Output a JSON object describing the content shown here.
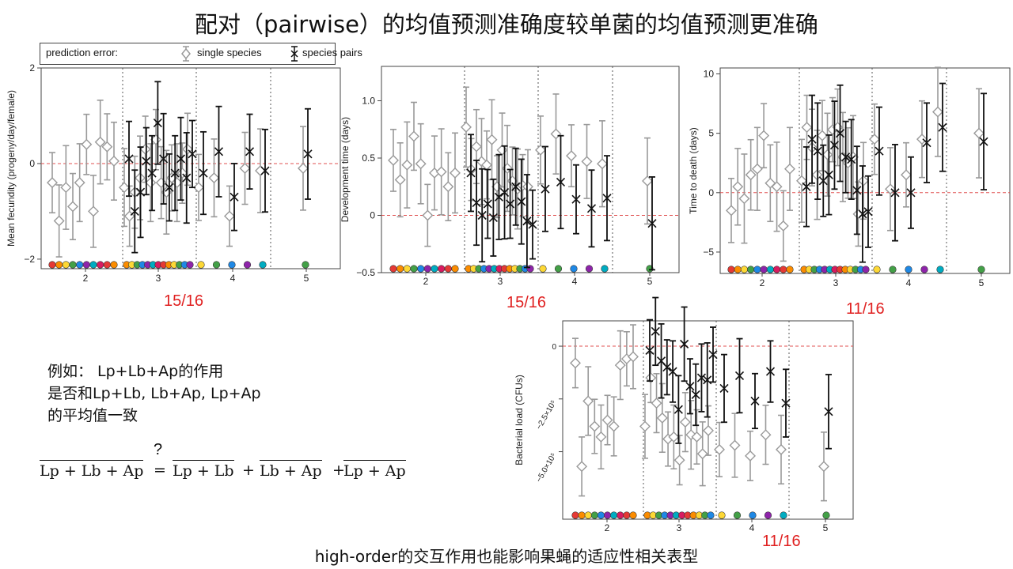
{
  "page": {
    "title": "配对（pairwise）的均值预测准确度较单菌的均值预测更准确",
    "footer": "high-order的交互作用也能影响果蝇的适应性相关表型",
    "note_lines": [
      "例如： Lp+Lb+Ap的作用",
      "是否和Lp+Lb, Lb+Ap, Lp+Ap",
      "的平均值一致"
    ],
    "formula": {
      "lhs": "Lp + Lb + Ap",
      "question": "?",
      "equals": "=",
      "terms": [
        "Lp + Lb",
        "Lb + Ap",
        "Lp + Ap"
      ],
      "plus": "+"
    },
    "legend": {
      "title": "prediction error:",
      "single": "single species",
      "pairs": "species pairs"
    },
    "fractions": [
      "15/16",
      "15/16",
      "11/16",
      "11/16"
    ],
    "colors": {
      "single": "#999999",
      "pairs": "#111111",
      "zero_line": "#e05050",
      "fraction": "#e02020"
    }
  },
  "chart_data": [
    {
      "type": "scatter",
      "ylabel": "Mean fecundity (progeny/day/female)",
      "categories": [
        "2",
        "3",
        "4",
        "5"
      ],
      "yticks": [
        "2",
        "0",
        "−2"
      ],
      "ylim": [
        -2.2,
        2.0
      ],
      "series": [
        {
          "name": "single species",
          "groups": [
            [
              -0.4,
              -1.2,
              -0.5,
              -0.9,
              -0.4,
              0.4,
              -1.0,
              0.45,
              0.35,
              0.05
            ],
            [
              -0.5,
              -1.1,
              -0.6,
              -0.3,
              0.3,
              -0.4,
              0.5,
              -0.4,
              -0.6,
              -0.3,
              -0.4,
              -0.2,
              0.3
            ],
            [
              -0.5,
              -0.3,
              -1.1,
              -0.1,
              -0.15
            ],
            [
              -0.1
            ]
          ]
        },
        {
          "name": "species pairs",
          "groups": [
            [],
            [
              0.1,
              -1.0,
              -0.6,
              0.05,
              -0.2,
              0.85,
              0.1,
              -0.5,
              -0.2,
              0.1,
              -0.3,
              0.2
            ],
            [
              -0.2,
              0.25,
              -0.7,
              0.25,
              -0.15
            ],
            [
              0.2
            ]
          ]
        }
      ]
    },
    {
      "type": "scatter",
      "ylabel": "Development time (days)",
      "categories": [
        "2",
        "3",
        "4",
        "5"
      ],
      "yticks": [
        "1.0",
        "0.5",
        "0",
        "−0.5"
      ],
      "ylim": [
        -0.5,
        1.3
      ],
      "series": [
        {
          "name": "single species",
          "groups": [
            [
              0.48,
              0.31,
              0.44,
              0.69,
              0.45,
              0.0,
              0.37,
              0.38,
              0.25,
              0.37
            ],
            [
              0.77,
              0.4,
              0.6,
              0.47,
              0.44,
              0.66,
              0.25,
              0.57,
              0.41,
              0.3,
              0.23,
              0.26,
              0.25
            ],
            [
              0.57,
              0.71,
              0.52,
              0.47,
              0.45
            ],
            [
              0.3
            ]
          ]
        },
        {
          "name": "species pairs",
          "groups": [
            [],
            [
              0.37,
              0.11,
              0.0,
              0.1,
              -0.02,
              0.16,
              0.2,
              0.1,
              0.25,
              0.12,
              -0.05,
              -0.08
            ],
            [
              0.23,
              0.29,
              0.14,
              0.06,
              0.15
            ],
            [
              -0.07
            ]
          ]
        }
      ]
    },
    {
      "type": "scatter",
      "ylabel": "Time to death (days)",
      "categories": [
        "2",
        "3",
        "4",
        "5"
      ],
      "yticks": [
        "10",
        "5",
        "0",
        "−5"
      ],
      "ylim": [
        -6.8,
        10.5
      ],
      "series": [
        {
          "name": "single species",
          "groups": [
            [
              -1.5,
              0.5,
              -0.5,
              1.5,
              2.0,
              4.8,
              0.8,
              0.5,
              -2.8,
              2.0
            ],
            [
              1.0,
              5.5,
              3.8,
              1.5,
              4.8,
              3.2,
              5.3,
              5.5,
              3.0,
              2.5,
              3.0,
              -1.8,
              1.0
            ],
            [
              4.5,
              0.3,
              1.5,
              4.5,
              6.8
            ],
            [
              5.0
            ]
          ]
        },
        {
          "name": "species pairs",
          "groups": [
            [],
            [
              0.5,
              4.5,
              3.5,
              1.0,
              1.5,
              4.0,
              5.0,
              3.0,
              2.8,
              0.2,
              -1.8,
              -1.6
            ],
            [
              3.5,
              0.0,
              0.0,
              4.2,
              5.5
            ],
            [
              4.3
            ]
          ]
        }
      ]
    },
    {
      "type": "scatter",
      "ylabel": "Bacterial load (CFUs)",
      "categories": [
        "2",
        "3",
        "4",
        "5"
      ],
      "yticks": [
        "0",
        "−2.5×10⁵",
        "−5.0×10⁵"
      ],
      "ylim": [
        -8.2,
        1.2
      ],
      "series": [
        {
          "name": "single species",
          "groups": [
            [
              -0.8,
              -5.7,
              -2.6,
              -3.8,
              -4.3,
              -3.5,
              -3.8,
              -0.9,
              -0.6,
              -0.5
            ],
            [
              -3.8,
              -1.5,
              -2.7,
              -3.4,
              -4.4,
              -4.3,
              -5.4,
              -3.6,
              -4.2,
              -4.3,
              -5.1,
              -4.0
            ],
            [
              -4.9,
              -4.7,
              -5.2,
              -4.2,
              -4.9
            ],
            [
              -5.7
            ]
          ]
        },
        {
          "name": "species pairs",
          "groups": [
            [],
            [
              -0.2,
              0.7,
              -0.7,
              -1.0,
              -1.2,
              -3.0,
              0.1,
              -1.9,
              -2.3,
              -1.5,
              -1.6,
              -0.4
            ],
            [
              -2.0,
              -1.4,
              -2.6,
              -1.2,
              -2.7
            ],
            [
              -3.1
            ]
          ]
        }
      ]
    }
  ]
}
